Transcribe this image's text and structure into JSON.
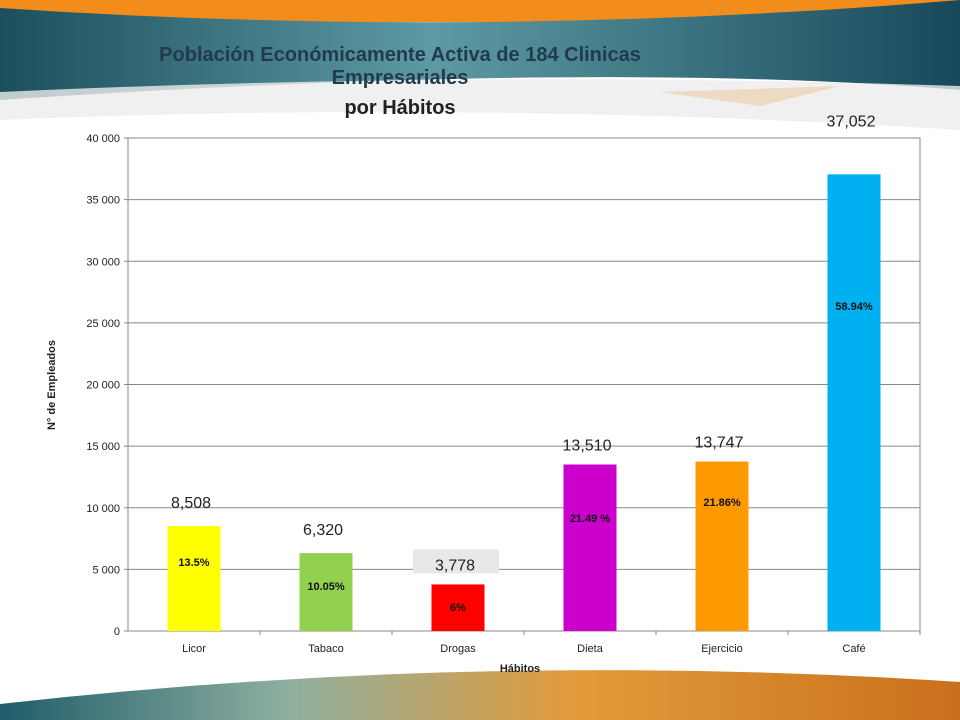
{
  "chart_data": {
    "type": "bar",
    "title": "Población Económicamente Activa de 184 Clinicas Empresariales por Hábitos",
    "title_lines": [
      "Población Económicamente Activa de 184 Clinicas",
      "Empresariales",
      "por Hábitos"
    ],
    "categories": [
      "Licor",
      "Tabaco",
      "Drogas",
      "Dieta",
      "Ejercicio",
      "Café"
    ],
    "values": [
      8508,
      6320,
      3778,
      13510,
      13747,
      37052
    ],
    "value_labels": [
      "8,508",
      "6,320",
      "3,778",
      "13,510",
      "13,747",
      "37,052"
    ],
    "percent_labels": [
      "13.5%",
      "10.05%",
      "6%",
      "21.49 %",
      "21.86%",
      "58.94%"
    ],
    "colors": [
      "#ffff00",
      "#92d050",
      "#ff0000",
      "#cc00cc",
      "#ff9900",
      "#00b0f0"
    ],
    "xlabel": "Hábitos",
    "ylabel": "N° de Empleados",
    "ylim": [
      0,
      40000
    ],
    "yticks": [
      0,
      5000,
      10000,
      15000,
      20000,
      25000,
      30000,
      35000,
      40000
    ],
    "ytick_labels": [
      "0",
      "5 000",
      "10 000",
      "15 000",
      "20 000",
      "25 000",
      "30 000",
      "35 000",
      "40 000"
    ],
    "grid": true,
    "legend": "none"
  }
}
